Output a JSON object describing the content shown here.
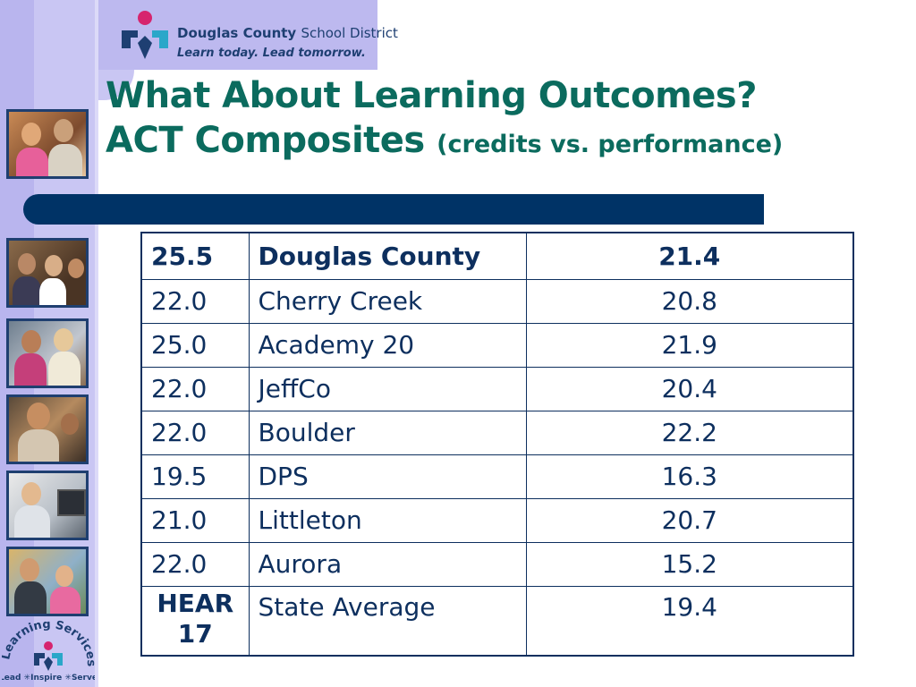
{
  "logo": {
    "name_bold": "Douglas County",
    "name_light": "School District",
    "tagline": "Learn today. Lead tomorrow."
  },
  "title": {
    "line1": "What About Learning Outcomes?",
    "line2_main": "ACT Composites",
    "line2_sub": "(credits vs. performance)"
  },
  "table": {
    "header": {
      "credits": "25.5",
      "district": "Douglas County",
      "score": "21.4"
    },
    "rows": [
      {
        "credits": "22.0",
        "district": "Cherry Creek",
        "score": "20.8"
      },
      {
        "credits": "25.0",
        "district": "Academy 20",
        "score": "21.9"
      },
      {
        "credits": "22.0",
        "district": "JeffCo",
        "score": "20.4"
      },
      {
        "credits": "22.0",
        "district": "Boulder",
        "score": "22.2"
      },
      {
        "credits": "19.5",
        "district": "DPS",
        "score": "16.3"
      },
      {
        "credits": "21.0",
        "district": "Littleton",
        "score": "20.7"
      },
      {
        "credits": "22.0",
        "district": "Aurora",
        "score": "15.2"
      }
    ],
    "last": {
      "credits_line1": "HEAR",
      "credits_line2": "17",
      "district": "State Average",
      "score": "19.4"
    }
  },
  "learning_services": {
    "arc_text": "Learning Services",
    "footer": "Lead ✳Inspire ✳Serve"
  },
  "colors": {
    "title": "#0b6b5e",
    "bar": "#003366",
    "table_text": "#0d2f5e",
    "strip": "#c9c6f3"
  }
}
